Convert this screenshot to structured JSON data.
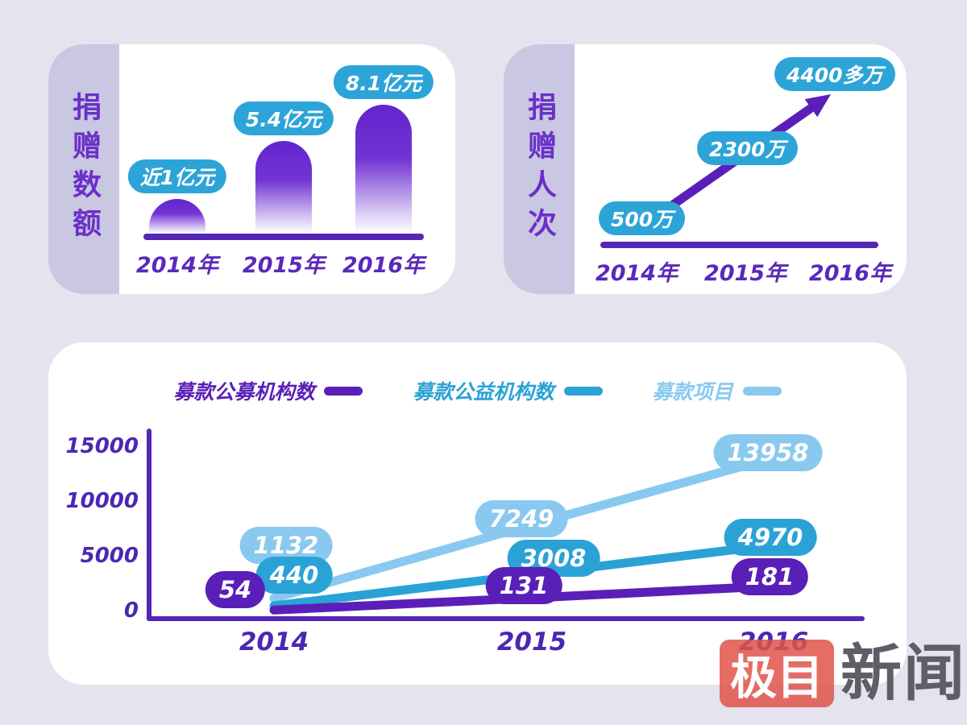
{
  "page_background": "#e4e3ee",
  "cards": [
    {
      "title": "捐赠数额"
    },
    {
      "title": "捐赠人次"
    },
    {
      "title": ""
    }
  ],
  "chart_data": [
    {
      "type": "bar",
      "title": "捐赠数额",
      "categories": [
        "2014年",
        "2015年",
        "2016年"
      ],
      "values": [
        1,
        5.4,
        8.1
      ],
      "value_labels": [
        "近1亿元",
        "5.4亿元",
        "8.1亿元"
      ],
      "unit": "亿元",
      "ylim": [
        0,
        8.1
      ],
      "bar_color": "#6224cd",
      "label_pill_color": "#2da4d8"
    },
    {
      "type": "line",
      "style": "trend-arrow",
      "title": "捐赠人次",
      "categories": [
        "2014年",
        "2015年",
        "2016年"
      ],
      "values": [
        500,
        2300,
        4400
      ],
      "value_labels": [
        "500万",
        "2300万",
        "4400多万"
      ],
      "unit": "万",
      "line_color": "#5a1fb8",
      "label_pill_color": "#2da4d8"
    },
    {
      "type": "line",
      "categories": [
        "2014",
        "2015",
        "2016"
      ],
      "series": [
        {
          "name": "募款公募机构数",
          "color": "#5a1fb8",
          "values": [
            54,
            131,
            181
          ]
        },
        {
          "name": "募款公益机构数",
          "color": "#2ba2d6",
          "values": [
            440,
            3008,
            4970
          ]
        },
        {
          "name": "募款项目",
          "color": "#89c9ef",
          "values": [
            1132,
            7249,
            13958
          ]
        }
      ],
      "ylim": [
        0,
        15000
      ],
      "yticks": [
        0,
        5000,
        10000,
        15000
      ],
      "legend_position": "top",
      "grid": false,
      "axis_color": "#5526b5"
    }
  ],
  "watermark": {
    "badge_text": "极目",
    "suffix_text": "新闻"
  },
  "colors": {
    "accent_purple": "#5a1fb8",
    "teal": "#2da4d8",
    "light_blue": "#89c9ef",
    "strip_lavender": "#c9c7e1",
    "title_purple": "#6a30c8",
    "logo_red": "#e0544a",
    "card_white": "#ffffff"
  }
}
